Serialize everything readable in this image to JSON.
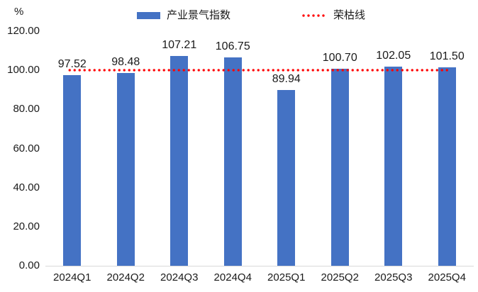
{
  "chart": {
    "unit_label": "%"
  },
  "chart_data": {
    "type": "bar",
    "title": "",
    "xlabel": "",
    "ylabel": "%",
    "categories": [
      "2024Q1",
      "2024Q2",
      "2024Q3",
      "2024Q4",
      "2025Q1",
      "2025Q2",
      "2025Q3",
      "2025Q4"
    ],
    "series": [
      {
        "name": "产业景气指数",
        "type": "bar",
        "color": "#4472C4",
        "values": [
          97.52,
          98.48,
          107.21,
          106.75,
          89.94,
          100.7,
          102.05,
          101.5
        ],
        "data_labels": [
          "97.52",
          "98.48",
          "107.21",
          "106.75",
          "89.94",
          "100.70",
          "102.05",
          "101.50"
        ]
      },
      {
        "name": "荣枯线",
        "type": "reference-line",
        "style": "dotted",
        "color": "#FF0000",
        "value": 100
      }
    ],
    "ylim": [
      0,
      120
    ],
    "yticks": [
      0,
      20,
      40,
      60,
      80,
      100,
      120
    ],
    "ytick_labels": [
      "0.00",
      "20.00",
      "40.00",
      "60.00",
      "80.00",
      "100.00",
      "120.00"
    ],
    "grid": false,
    "legend_position": "top"
  }
}
